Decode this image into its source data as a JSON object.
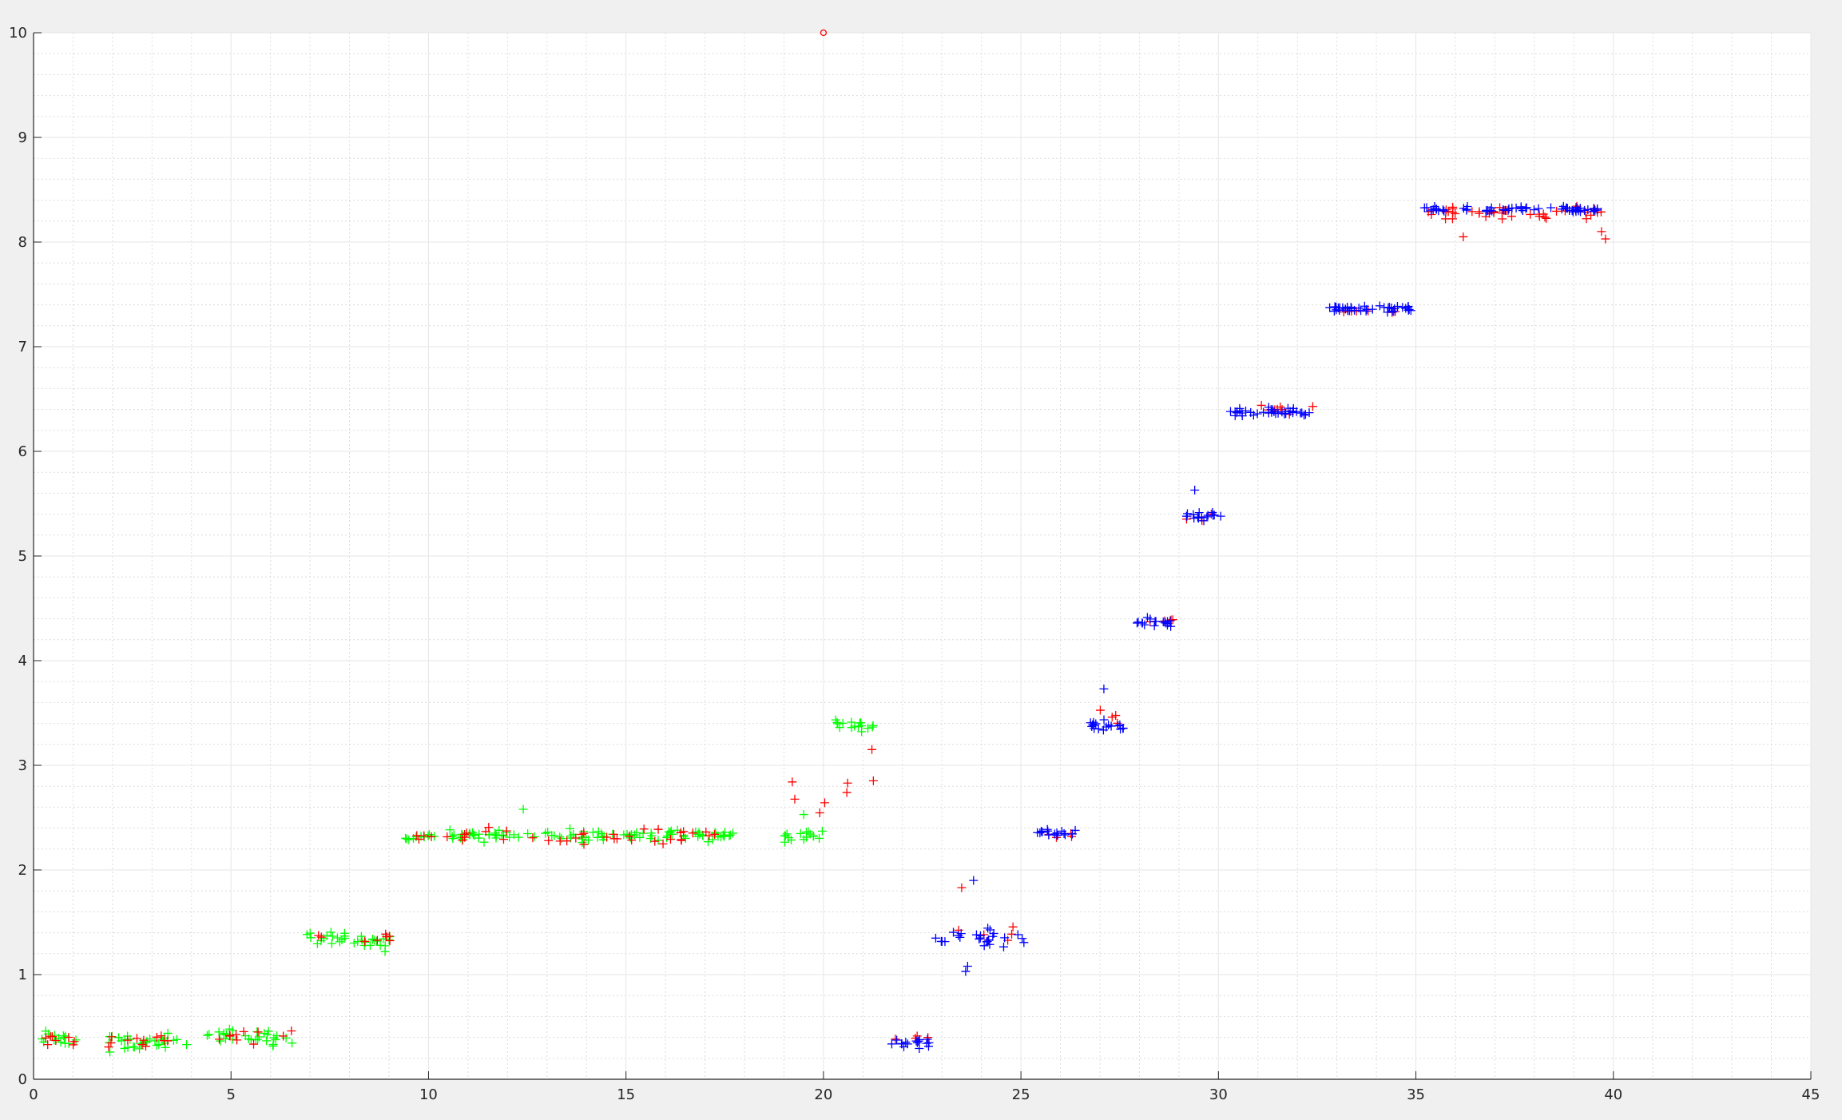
{
  "chart_data": {
    "type": "scatter",
    "title": "",
    "xlabel": "",
    "ylabel": "",
    "xlim": [
      0,
      45
    ],
    "ylim": [
      0,
      10
    ],
    "xticks": [
      0,
      5,
      10,
      15,
      20,
      25,
      30,
      35,
      40,
      45
    ],
    "yticks": [
      0,
      1,
      2,
      3,
      4,
      5,
      6,
      7,
      8,
      9,
      10
    ],
    "xtick_labels": [
      "0",
      "5",
      "10",
      "15",
      "20",
      "25",
      "30",
      "35",
      "40",
      "45"
    ],
    "ytick_labels": [
      "0",
      "1",
      "2",
      "3",
      "4",
      "5",
      "6",
      "7",
      "8",
      "9",
      "10"
    ],
    "grid": true,
    "minor_grid": true,
    "legend": "none",
    "colors": {
      "green": "#00ff00",
      "red": "#ff0000",
      "blue": "#0000ff",
      "grid": "#e6e6e6",
      "axes_bg": "#ffffff",
      "figure_bg": "#f0f0f0"
    },
    "clusters": [
      {
        "color": "green",
        "marker": "plus",
        "x_range": [
          0.1,
          1.1
        ],
        "y_center": 0.38,
        "y_spread": 0.12,
        "n": 14
      },
      {
        "color": "green",
        "marker": "plus",
        "x_range": [
          1.7,
          4.1
        ],
        "y_center": 0.35,
        "y_spread": 0.12,
        "n": 30
      },
      {
        "color": "green",
        "marker": "plus",
        "x_range": [
          4.3,
          6.6
        ],
        "y_center": 0.4,
        "y_spread": 0.12,
        "n": 30
      },
      {
        "color": "green",
        "marker": "plus",
        "x_range": [
          6.9,
          7.9
        ],
        "y_center": 1.35,
        "y_spread": 0.08,
        "n": 16
      },
      {
        "color": "green",
        "marker": "plus",
        "x_range": [
          8.1,
          9.1
        ],
        "y_center": 1.33,
        "y_spread": 0.08,
        "n": 16
      },
      {
        "color": "green",
        "marker": "plus",
        "x_range": [
          9.4,
          17.8
        ],
        "y_center": 2.33,
        "y_spread": 0.08,
        "n": 110
      },
      {
        "color": "green",
        "marker": "plus",
        "x_range": [
          19.0,
          20.0
        ],
        "y_center": 2.32,
        "y_spread": 0.08,
        "n": 16
      },
      {
        "color": "green",
        "marker": "plus",
        "x_range": [
          20.3,
          21.3
        ],
        "y_center": 3.38,
        "y_spread": 0.1,
        "n": 16
      },
      {
        "color": "red",
        "marker": "plus",
        "x_range": [
          0.1,
          1.1
        ],
        "y_center": 0.38,
        "y_spread": 0.1,
        "n": 8
      },
      {
        "color": "red",
        "marker": "plus",
        "x_range": [
          1.7,
          4.1
        ],
        "y_center": 0.37,
        "y_spread": 0.1,
        "n": 12
      },
      {
        "color": "red",
        "marker": "plus",
        "x_range": [
          4.3,
          6.6
        ],
        "y_center": 0.4,
        "y_spread": 0.12,
        "n": 10
      },
      {
        "color": "red",
        "marker": "plus",
        "x_range": [
          6.9,
          9.1
        ],
        "y_center": 1.36,
        "y_spread": 0.08,
        "n": 8
      },
      {
        "color": "red",
        "marker": "plus",
        "x_range": [
          9.4,
          17.8
        ],
        "y_center": 2.33,
        "y_spread": 0.1,
        "n": 40
      },
      {
        "color": "red",
        "marker": "plus",
        "x_range": [
          19.0,
          21.3
        ],
        "y_center": 2.8,
        "y_spread": 0.55,
        "n": 8
      },
      {
        "color": "red",
        "marker": "plus",
        "x_range": [
          21.7,
          22.7
        ],
        "y_center": 0.4,
        "y_spread": 0.06,
        "n": 4
      },
      {
        "color": "red",
        "marker": "plus",
        "x_range": [
          23.2,
          25.2
        ],
        "y_center": 1.4,
        "y_spread": 0.2,
        "n": 6
      },
      {
        "color": "red",
        "marker": "plus",
        "x_range": [
          25.6,
          26.4
        ],
        "y_center": 2.32,
        "y_spread": 0.05,
        "n": 4
      },
      {
        "color": "red",
        "marker": "plus",
        "x_range": [
          26.7,
          27.6
        ],
        "y_center": 3.45,
        "y_spread": 0.12,
        "n": 4
      },
      {
        "color": "red",
        "marker": "plus",
        "x_range": [
          27.9,
          28.9
        ],
        "y_center": 4.38,
        "y_spread": 0.05,
        "n": 4
      },
      {
        "color": "red",
        "marker": "plus",
        "x_range": [
          29.1,
          30.1
        ],
        "y_center": 5.37,
        "y_spread": 0.05,
        "n": 4
      },
      {
        "color": "red",
        "marker": "plus",
        "x_range": [
          30.3,
          32.4
        ],
        "y_center": 6.4,
        "y_spread": 0.06,
        "n": 8
      },
      {
        "color": "red",
        "marker": "plus",
        "x_range": [
          32.8,
          34.9
        ],
        "y_center": 7.34,
        "y_spread": 0.05,
        "n": 6
      },
      {
        "color": "red",
        "marker": "plus",
        "x_range": [
          35.1,
          39.9
        ],
        "y_center": 8.28,
        "y_spread": 0.08,
        "n": 40
      },
      {
        "color": "blue",
        "marker": "plus",
        "x_range": [
          21.7,
          22.7
        ],
        "y_center": 0.35,
        "y_spread": 0.08,
        "n": 16
      },
      {
        "color": "blue",
        "marker": "plus",
        "x_range": [
          22.8,
          25.2
        ],
        "y_center": 1.35,
        "y_spread": 0.12,
        "n": 26
      },
      {
        "color": "blue",
        "marker": "plus",
        "x_range": [
          25.4,
          26.4
        ],
        "y_center": 2.35,
        "y_spread": 0.05,
        "n": 16
      },
      {
        "color": "blue",
        "marker": "plus",
        "x_range": [
          26.7,
          27.6
        ],
        "y_center": 3.38,
        "y_spread": 0.08,
        "n": 18
      },
      {
        "color": "blue",
        "marker": "plus",
        "x_range": [
          27.8,
          28.9
        ],
        "y_center": 4.37,
        "y_spread": 0.06,
        "n": 18
      },
      {
        "color": "blue",
        "marker": "plus",
        "x_range": [
          29.1,
          30.1
        ],
        "y_center": 5.38,
        "y_spread": 0.06,
        "n": 16
      },
      {
        "color": "blue",
        "marker": "plus",
        "x_range": [
          30.3,
          32.4
        ],
        "y_center": 6.37,
        "y_spread": 0.06,
        "n": 36
      },
      {
        "color": "blue",
        "marker": "plus",
        "x_range": [
          32.8,
          34.9
        ],
        "y_center": 7.36,
        "y_spread": 0.05,
        "n": 40
      },
      {
        "color": "blue",
        "marker": "plus",
        "x_range": [
          35.1,
          39.7
        ],
        "y_center": 8.31,
        "y_spread": 0.04,
        "n": 56
      }
    ],
    "extra_points": [
      {
        "color": "red",
        "marker": "circle",
        "x": 20.0,
        "y": 10.0
      },
      {
        "color": "red",
        "marker": "plus",
        "x": 36.2,
        "y": 8.05
      },
      {
        "color": "red",
        "marker": "plus",
        "x": 39.8,
        "y": 8.03
      },
      {
        "color": "red",
        "marker": "plus",
        "x": 39.7,
        "y": 8.1
      },
      {
        "color": "red",
        "marker": "plus",
        "x": 23.5,
        "y": 1.83
      },
      {
        "color": "blue",
        "marker": "plus",
        "x": 23.8,
        "y": 1.9
      },
      {
        "color": "blue",
        "marker": "plus",
        "x": 23.6,
        "y": 1.03
      },
      {
        "color": "blue",
        "marker": "plus",
        "x": 23.65,
        "y": 1.08
      },
      {
        "color": "blue",
        "marker": "plus",
        "x": 29.4,
        "y": 5.63
      },
      {
        "color": "blue",
        "marker": "plus",
        "x": 27.1,
        "y": 3.73
      },
      {
        "color": "green",
        "marker": "plus",
        "x": 8.9,
        "y": 1.22
      },
      {
        "color": "green",
        "marker": "plus",
        "x": 19.5,
        "y": 2.53
      },
      {
        "color": "green",
        "marker": "plus",
        "x": 12.4,
        "y": 2.58
      }
    ]
  }
}
